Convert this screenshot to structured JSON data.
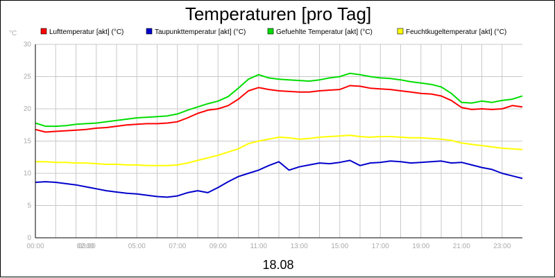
{
  "chart_data": {
    "type": "line",
    "title": "Temperaturen [pro Tag]",
    "ylabel": "°C",
    "xlabel": "18.08",
    "ylim": [
      0,
      30
    ],
    "yticks": [
      0,
      5,
      10,
      15,
      20,
      25,
      30
    ],
    "xlim": [
      0,
      24
    ],
    "xtick_labels": [
      {
        "x": 0,
        "label": "00:00"
      },
      {
        "x": 2,
        "label": "02:00"
      },
      {
        "x": 3,
        "label": "03:00"
      },
      {
        "x": 5,
        "label": "05:00"
      },
      {
        "x": 7,
        "label": "07:00"
      },
      {
        "x": 9,
        "label": "09:00"
      },
      {
        "x": 11,
        "label": "11:00"
      },
      {
        "x": 13,
        "label": "13:00"
      },
      {
        "x": 15,
        "label": "15:00"
      },
      {
        "x": 17,
        "label": "17:00"
      },
      {
        "x": 19,
        "label": "19:00"
      },
      {
        "x": 21,
        "label": "21:00"
      },
      {
        "x": 23,
        "label": "23:00"
      }
    ],
    "grid": true,
    "legend_position": "top",
    "series": [
      {
        "name": "Lufttemperatur [akt] (°C)",
        "color": "#ff0000",
        "x": [
          0,
          0.5,
          1,
          1.5,
          2,
          2.5,
          3,
          3.5,
          4,
          4.5,
          5,
          5.5,
          6,
          6.5,
          7,
          7.5,
          8,
          8.5,
          9,
          9.5,
          10,
          10.5,
          11,
          11.5,
          12,
          12.5,
          13,
          13.5,
          14,
          14.5,
          15,
          15.5,
          16,
          16.5,
          17,
          17.5,
          18,
          18.5,
          19,
          19.5,
          20,
          20.5,
          21,
          21.5,
          22,
          22.5,
          23,
          23.5,
          24
        ],
        "y": [
          16.8,
          16.4,
          16.5,
          16.6,
          16.7,
          16.8,
          17.0,
          17.1,
          17.3,
          17.5,
          17.6,
          17.7,
          17.7,
          17.8,
          18.0,
          18.6,
          19.3,
          19.8,
          20.0,
          20.5,
          21.5,
          22.8,
          23.3,
          23.0,
          22.8,
          22.7,
          22.6,
          22.6,
          22.8,
          22.9,
          23.0,
          23.6,
          23.5,
          23.2,
          23.1,
          23.0,
          22.8,
          22.6,
          22.4,
          22.3,
          22.0,
          21.3,
          20.2,
          19.9,
          20.0,
          19.9,
          20.0,
          20.5,
          20.3
        ]
      },
      {
        "name": "Taupunkttemperatur [akt] (°C)",
        "color": "#0000cc",
        "x": [
          0,
          0.5,
          1,
          1.5,
          2,
          2.5,
          3,
          3.5,
          4,
          4.5,
          5,
          5.5,
          6,
          6.5,
          7,
          7.5,
          8,
          8.5,
          9,
          9.5,
          10,
          10.5,
          11,
          11.5,
          12,
          12.5,
          13,
          13.5,
          14,
          14.5,
          15,
          15.5,
          16,
          16.5,
          17,
          17.5,
          18,
          18.5,
          19,
          19.5,
          20,
          20.5,
          21,
          21.5,
          22,
          22.5,
          23,
          23.5,
          24
        ],
        "y": [
          8.6,
          8.7,
          8.6,
          8.4,
          8.2,
          7.9,
          7.6,
          7.3,
          7.1,
          6.9,
          6.8,
          6.6,
          6.4,
          6.3,
          6.5,
          7.0,
          7.3,
          7.0,
          7.8,
          8.7,
          9.5,
          10.0,
          10.5,
          11.2,
          11.8,
          10.5,
          11.0,
          11.3,
          11.6,
          11.5,
          11.7,
          12.0,
          11.2,
          11.6,
          11.7,
          11.9,
          11.8,
          11.6,
          11.7,
          11.8,
          11.9,
          11.6,
          11.7,
          11.3,
          10.9,
          10.6,
          10.0,
          9.6,
          9.2
        ]
      },
      {
        "name": "Gefuehlte Temperatur [akt] (°C)",
        "color": "#00dd00",
        "x": [
          0,
          0.5,
          1,
          1.5,
          2,
          2.5,
          3,
          3.5,
          4,
          4.5,
          5,
          5.5,
          6,
          6.5,
          7,
          7.5,
          8,
          8.5,
          9,
          9.5,
          10,
          10.5,
          11,
          11.5,
          12,
          12.5,
          13,
          13.5,
          14,
          14.5,
          15,
          15.5,
          16,
          16.5,
          17,
          17.5,
          18,
          18.5,
          19,
          19.5,
          20,
          20.5,
          21,
          21.5,
          22,
          22.5,
          23,
          23.5,
          24
        ],
        "y": [
          17.8,
          17.3,
          17.3,
          17.4,
          17.6,
          17.7,
          17.8,
          18.0,
          18.2,
          18.4,
          18.6,
          18.7,
          18.8,
          18.9,
          19.2,
          19.8,
          20.3,
          20.8,
          21.2,
          21.9,
          23.2,
          24.6,
          25.3,
          24.8,
          24.6,
          24.5,
          24.4,
          24.3,
          24.5,
          24.8,
          25.0,
          25.5,
          25.3,
          25.0,
          24.8,
          24.7,
          24.5,
          24.2,
          24.0,
          23.8,
          23.4,
          22.4,
          21.0,
          20.9,
          21.2,
          21.0,
          21.3,
          21.5,
          22.0
        ]
      },
      {
        "name": "Feuchtkugeltemperatur [akt] (°C)",
        "color": "#ffff00",
        "x": [
          0,
          0.5,
          1,
          1.5,
          2,
          2.5,
          3,
          3.5,
          4,
          4.5,
          5,
          5.5,
          6,
          6.5,
          7,
          7.5,
          8,
          8.5,
          9,
          9.5,
          10,
          10.5,
          11,
          11.5,
          12,
          12.5,
          13,
          13.5,
          14,
          14.5,
          15,
          15.5,
          16,
          16.5,
          17,
          17.5,
          18,
          18.5,
          19,
          19.5,
          20,
          20.5,
          21,
          21.5,
          22,
          22.5,
          23,
          23.5,
          24
        ],
        "y": [
          11.8,
          11.8,
          11.7,
          11.7,
          11.6,
          11.6,
          11.5,
          11.4,
          11.4,
          11.3,
          11.3,
          11.2,
          11.2,
          11.2,
          11.3,
          11.6,
          12.0,
          12.4,
          12.8,
          13.3,
          13.8,
          14.6,
          15.0,
          15.3,
          15.6,
          15.5,
          15.3,
          15.4,
          15.6,
          15.7,
          15.8,
          15.9,
          15.7,
          15.6,
          15.7,
          15.7,
          15.6,
          15.5,
          15.5,
          15.4,
          15.3,
          15.1,
          14.7,
          14.5,
          14.3,
          14.1,
          13.9,
          13.8,
          13.7
        ]
      }
    ]
  }
}
